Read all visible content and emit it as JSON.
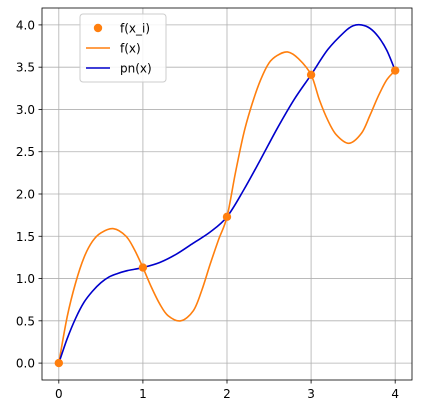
{
  "chart_data": {
    "type": "line",
    "title": "",
    "xlabel": "",
    "ylabel": "",
    "xlim": [
      -0.2,
      4.2
    ],
    "ylim": [
      -0.2,
      4.2
    ],
    "grid": true,
    "legend_position": "top-left",
    "x_ticks": [
      0,
      1,
      2,
      3,
      4
    ],
    "x_tick_labels": [
      "0",
      "1",
      "2",
      "3",
      "4"
    ],
    "y_ticks": [
      0.0,
      0.5,
      1.0,
      1.5,
      2.0,
      2.5,
      3.0,
      3.5,
      4.0
    ],
    "y_tick_labels": [
      "0.0",
      "0.5",
      "1.0",
      "1.5",
      "2.0",
      "2.5",
      "3.0",
      "3.5",
      "4.0"
    ],
    "series": [
      {
        "name": "f(x_i)",
        "kind": "scatter",
        "color": "#ff7f0e",
        "x": [
          0,
          1,
          2,
          3,
          4
        ],
        "y": [
          0.0,
          1.13,
          1.73,
          3.41,
          3.46
        ]
      },
      {
        "name": "f(x)",
        "kind": "line",
        "color": "#ff7f0e",
        "x": [
          0,
          0.1,
          0.2,
          0.3,
          0.4,
          0.5,
          0.65,
          0.8,
          0.9,
          1.0,
          1.1,
          1.2,
          1.3,
          1.45,
          1.6,
          1.7,
          1.8,
          1.9,
          2.0,
          2.1,
          2.2,
          2.3,
          2.4,
          2.5,
          2.6,
          2.72,
          2.85,
          3.0,
          3.1,
          3.2,
          3.3,
          3.45,
          3.6,
          3.7,
          3.8,
          3.9,
          4.0
        ],
        "y": [
          0.0,
          0.55,
          0.95,
          1.25,
          1.44,
          1.54,
          1.59,
          1.5,
          1.34,
          1.13,
          0.9,
          0.7,
          0.56,
          0.5,
          0.62,
          0.86,
          1.17,
          1.46,
          1.73,
          2.25,
          2.72,
          3.07,
          3.35,
          3.55,
          3.64,
          3.68,
          3.6,
          3.41,
          3.11,
          2.87,
          2.7,
          2.6,
          2.72,
          2.93,
          3.16,
          3.35,
          3.46
        ]
      },
      {
        "name": "pn(x)",
        "kind": "line",
        "color": "#0000cc",
        "x": [
          0,
          0.1,
          0.2,
          0.3,
          0.4,
          0.5,
          0.6,
          0.7,
          0.8,
          0.9,
          1.0,
          1.2,
          1.4,
          1.6,
          1.8,
          2.0,
          2.2,
          2.4,
          2.6,
          2.8,
          3.0,
          3.2,
          3.4,
          3.5,
          3.6,
          3.7,
          3.8,
          3.9,
          4.0
        ],
        "y": [
          0.0,
          0.29,
          0.53,
          0.72,
          0.85,
          0.95,
          1.02,
          1.06,
          1.09,
          1.11,
          1.13,
          1.19,
          1.29,
          1.42,
          1.55,
          1.73,
          2.05,
          2.41,
          2.78,
          3.12,
          3.41,
          3.71,
          3.92,
          3.99,
          4.0,
          3.96,
          3.86,
          3.7,
          3.46
        ]
      }
    ]
  }
}
